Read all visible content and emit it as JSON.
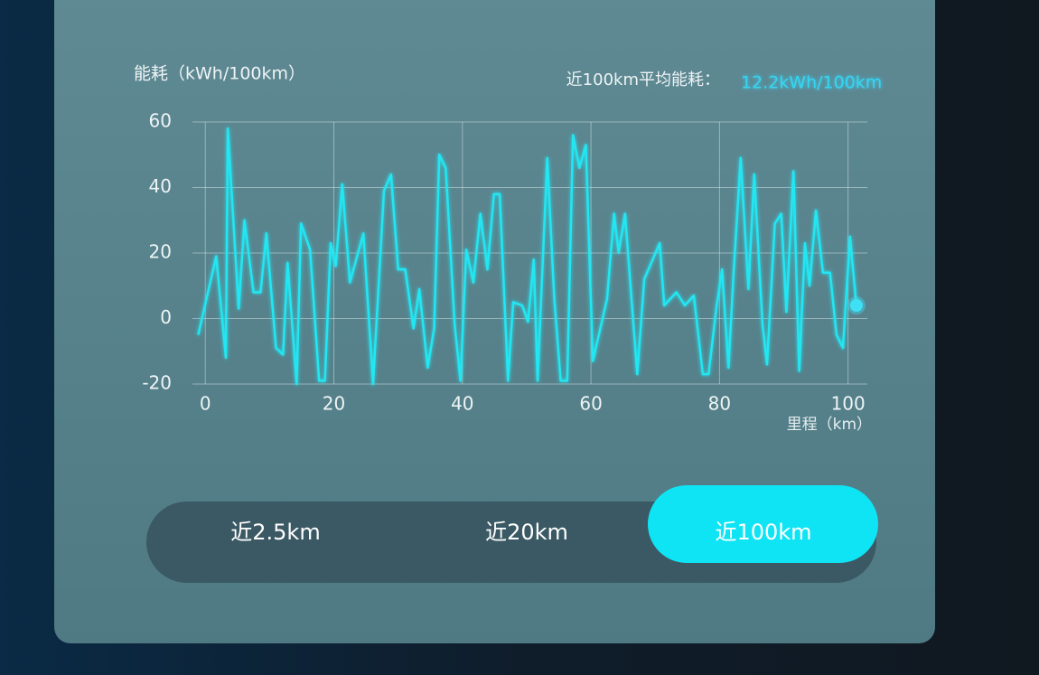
{
  "chart_data": {
    "type": "line",
    "title": "能耗（kWh/100km）",
    "x_label": "里程（km）",
    "average_label": "近100km平均能耗：",
    "average_value": "12.2kWh/100km",
    "color": "#22e6f2",
    "x": [
      -1.1,
      1.7,
      3.2,
      3.5,
      5.2,
      6.1,
      7.5,
      8.6,
      9.5,
      11.0,
      12.1,
      12.8,
      14.2,
      14.9,
      16.3,
      17.7,
      18.6,
      19.5,
      20.3,
      21.3,
      22.5,
      24.6,
      26.1,
      27.8,
      28.9,
      30.0,
      31.1,
      32.4,
      33.3,
      34.6,
      35.6,
      36.4,
      37.4,
      38.8,
      39.7,
      40.6,
      41.7,
      42.8,
      43.9,
      44.9,
      45.8,
      47.1,
      47.9,
      49.3,
      50.2,
      51.1,
      51.7,
      53.2,
      54.3,
      55.3,
      56.3,
      57.2,
      58.2,
      59.2,
      60.3,
      62.5,
      63.6,
      64.3,
      65.3,
      67.2,
      68.3,
      70.7,
      71.4,
      73.3,
      74.6,
      76.0,
      77.4,
      78.3,
      79.5,
      80.4,
      81.4,
      82.2,
      83.3,
      84.5,
      85.4,
      86.7,
      87.4,
      88.6,
      89.6,
      90.4,
      91.5,
      92.4,
      93.3,
      94.0,
      95.0,
      96.1,
      97.2,
      98.2,
      99.2,
      100.3,
      101.3
    ],
    "values": [
      -5,
      19,
      -12,
      58,
      3,
      30,
      8,
      8,
      26,
      -9,
      -11,
      17,
      -20,
      29,
      21,
      -19,
      -19,
      23,
      16,
      41,
      11,
      26,
      -20,
      39,
      44,
      15,
      15,
      -3,
      9,
      -15,
      -3,
      50,
      46,
      -2,
      -19,
      21,
      11,
      32,
      15,
      38,
      38,
      -19,
      5,
      4,
      -1,
      18,
      -19,
      49,
      6,
      -19,
      -19,
      56,
      46,
      53,
      -13,
      6,
      32,
      20,
      32,
      -17,
      12,
      23,
      4,
      8,
      4,
      7,
      -17,
      -17,
      3,
      15,
      -15,
      14,
      49,
      9,
      44,
      -2,
      -14,
      29,
      32,
      2,
      45,
      -16,
      23,
      10,
      33,
      14,
      14,
      -5,
      -9,
      25,
      4
    ],
    "xlim": [
      -2,
      103
    ],
    "ylim": [
      -20,
      60
    ],
    "xticks": [
      0,
      20,
      40,
      60,
      80,
      100
    ],
    "yticks": [
      -20,
      0,
      20,
      40,
      60
    ],
    "grid": true,
    "last_point_marker": true
  },
  "tabs": {
    "items": [
      "近2.5km",
      "近20km",
      "近100km"
    ],
    "active": 2
  }
}
